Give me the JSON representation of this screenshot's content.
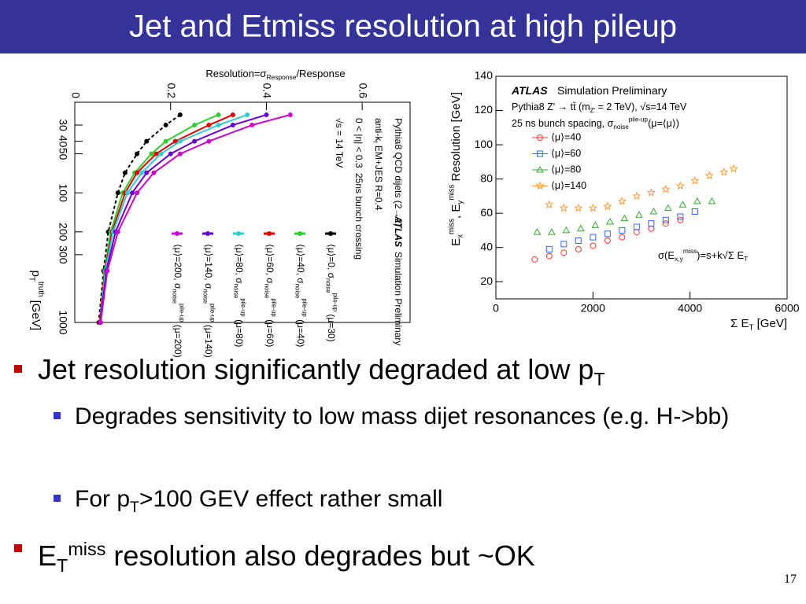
{
  "title": "Jet and Etmiss resolution at high pileup",
  "bullets": [
    [
      "Jet resolution significantly degraded at low p",
      "T"
    ],
    [
      "Degrades sensitivity to low mass dijet resonances (e.g. H->bb)"
    ],
    [
      "For p",
      "T",
      ">100 GEV effect rather small"
    ],
    [
      "E",
      "T",
      "miss",
      " resolution also degrades but ~OK"
    ]
  ],
  "page_number": "17",
  "chart_data": [
    {
      "type": "line",
      "ylabel": [
        "Resolution=σ",
        "Response",
        "/Response"
      ],
      "xlabel": [
        "p",
        "T",
        "truth",
        " [GeV]"
      ],
      "annotations": [
        [
          "ATLAS"
        ],
        [
          "Simulation Preliminary"
        ],
        [
          "Pythia8 QCD dijets (2→2)"
        ],
        [
          "anti-k",
          "t",
          " EM+JES R=0.4"
        ],
        [
          "0 < |η| < 0.3"
        ],
        [
          "25ns bunch crossing"
        ],
        [
          "√s = 14 TeV"
        ]
      ],
      "xscale": "log",
      "xlim": [
        20,
        1000
      ],
      "xticks": [
        30,
        40,
        50,
        100,
        200,
        300,
        1000
      ],
      "ylim": [
        0,
        0.7
      ],
      "yticks": [
        0,
        0.2,
        0.4,
        0.6
      ],
      "x": [
        25,
        30,
        40,
        50,
        70,
        100,
        200,
        400,
        1000
      ],
      "series": [
        {
          "name": [
            "⟨μ⟩=0, σ",
            "noise",
            "pile-up",
            " (μ=30)"
          ],
          "color": "#000000",
          "dash": true,
          "values": [
            0.22,
            0.19,
            0.15,
            0.13,
            0.105,
            0.09,
            0.07,
            0.06,
            0.05
          ]
        },
        {
          "name": [
            "⟨μ⟩=40, σ",
            "noise",
            "pile-up",
            " (μ=40)"
          ],
          "color": "#33cc33",
          "values": [
            0.3,
            0.25,
            0.19,
            0.16,
            0.125,
            0.1,
            0.075,
            0.062,
            0.052
          ]
        },
        {
          "name": [
            "⟨μ⟩=60, σ",
            "noise",
            "pile-up",
            " (μ=60)"
          ],
          "color": "#e00000",
          "values": [
            0.33,
            0.28,
            0.21,
            0.17,
            0.13,
            0.105,
            0.078,
            0.063,
            0.052
          ]
        },
        {
          "name": [
            "⟨μ⟩=80, σ",
            "noise",
            "pile-up",
            " (μ=80)"
          ],
          "color": "#33cccc",
          "values": [
            0.36,
            0.3,
            0.22,
            0.18,
            0.14,
            0.11,
            0.08,
            0.064,
            0.053
          ]
        },
        {
          "name": [
            "⟨μ⟩=140, σ",
            "noise",
            "pile-up",
            " (μ=140)"
          ],
          "color": "#6600cc",
          "values": [
            0.4,
            0.33,
            0.25,
            0.2,
            0.15,
            0.12,
            0.085,
            0.066,
            0.053
          ]
        },
        {
          "name": [
            "⟨μ⟩=200, σ",
            "noise",
            "pile-up",
            " (μ=200)"
          ],
          "color": "#cc00cc",
          "values": [
            0.45,
            0.37,
            0.28,
            0.22,
            0.165,
            0.13,
            0.09,
            0.068,
            0.054
          ]
        }
      ]
    },
    {
      "type": "scatter",
      "annotations": [
        [
          "ATLAS"
        ],
        [
          "Simulation Preliminary"
        ],
        [
          "Pythia8  Z' → tt̄ (m",
          "Z'",
          " = 2 TeV), √s=14 TeV"
        ],
        [
          "25 ns bunch spacing, σ",
          "noise",
          "pile-up",
          "(μ=⟨μ⟩)"
        ],
        [
          "σ(E",
          "x,y",
          "miss",
          ")=s+k√Σ E",
          "T"
        ]
      ],
      "xlabel": [
        "Σ E",
        "T",
        " [GeV]"
      ],
      "ylabel": [
        "E",
        "x",
        "miss",
        ", E",
        "y",
        "miss",
        " Resolution [GeV]"
      ],
      "xlim": [
        0,
        6000
      ],
      "xticks": [
        0,
        2000,
        4000,
        6000
      ],
      "ylim": [
        10,
        140
      ],
      "yticks": [
        20,
        40,
        60,
        80,
        100,
        120,
        140
      ],
      "series": [
        {
          "name": "⟨μ⟩=40",
          "color": "#ff3333",
          "marker": "circle",
          "x": [
            800,
            1100,
            1400,
            1700,
            2000,
            2300,
            2600,
            2900,
            3200,
            3500,
            3800
          ],
          "values": [
            33,
            35,
            37,
            39,
            41,
            44,
            46,
            49,
            51,
            54,
            56
          ]
        },
        {
          "name": "⟨μ⟩=60",
          "color": "#3366ff",
          "marker": "square",
          "x": [
            1100,
            1400,
            1700,
            2000,
            2300,
            2600,
            2900,
            3200,
            3500,
            3800,
            4100
          ],
          "values": [
            39,
            42,
            44,
            46,
            48,
            50,
            52,
            54,
            56,
            58,
            61
          ]
        },
        {
          "name": "⟨μ⟩=80",
          "color": "#33aa33",
          "marker": "triangle",
          "x": [
            850,
            1150,
            1450,
            1750,
            2050,
            2350,
            2650,
            2950,
            3250,
            3550,
            3850,
            4150,
            4450
          ],
          "values": [
            49,
            49,
            50,
            51,
            53,
            55,
            57,
            59,
            61,
            63,
            65,
            67,
            67
          ]
        },
        {
          "name": "⟨μ⟩=140",
          "color": "#ff9933",
          "marker": "star",
          "x": [
            1100,
            1400,
            1700,
            2000,
            2300,
            2600,
            2900,
            3200,
            3500,
            3800,
            4100,
            4400,
            4700,
            4900
          ],
          "values": [
            65,
            63,
            63,
            63,
            64,
            67,
            70,
            72,
            74,
            76,
            79,
            82,
            84,
            86
          ]
        }
      ]
    }
  ]
}
